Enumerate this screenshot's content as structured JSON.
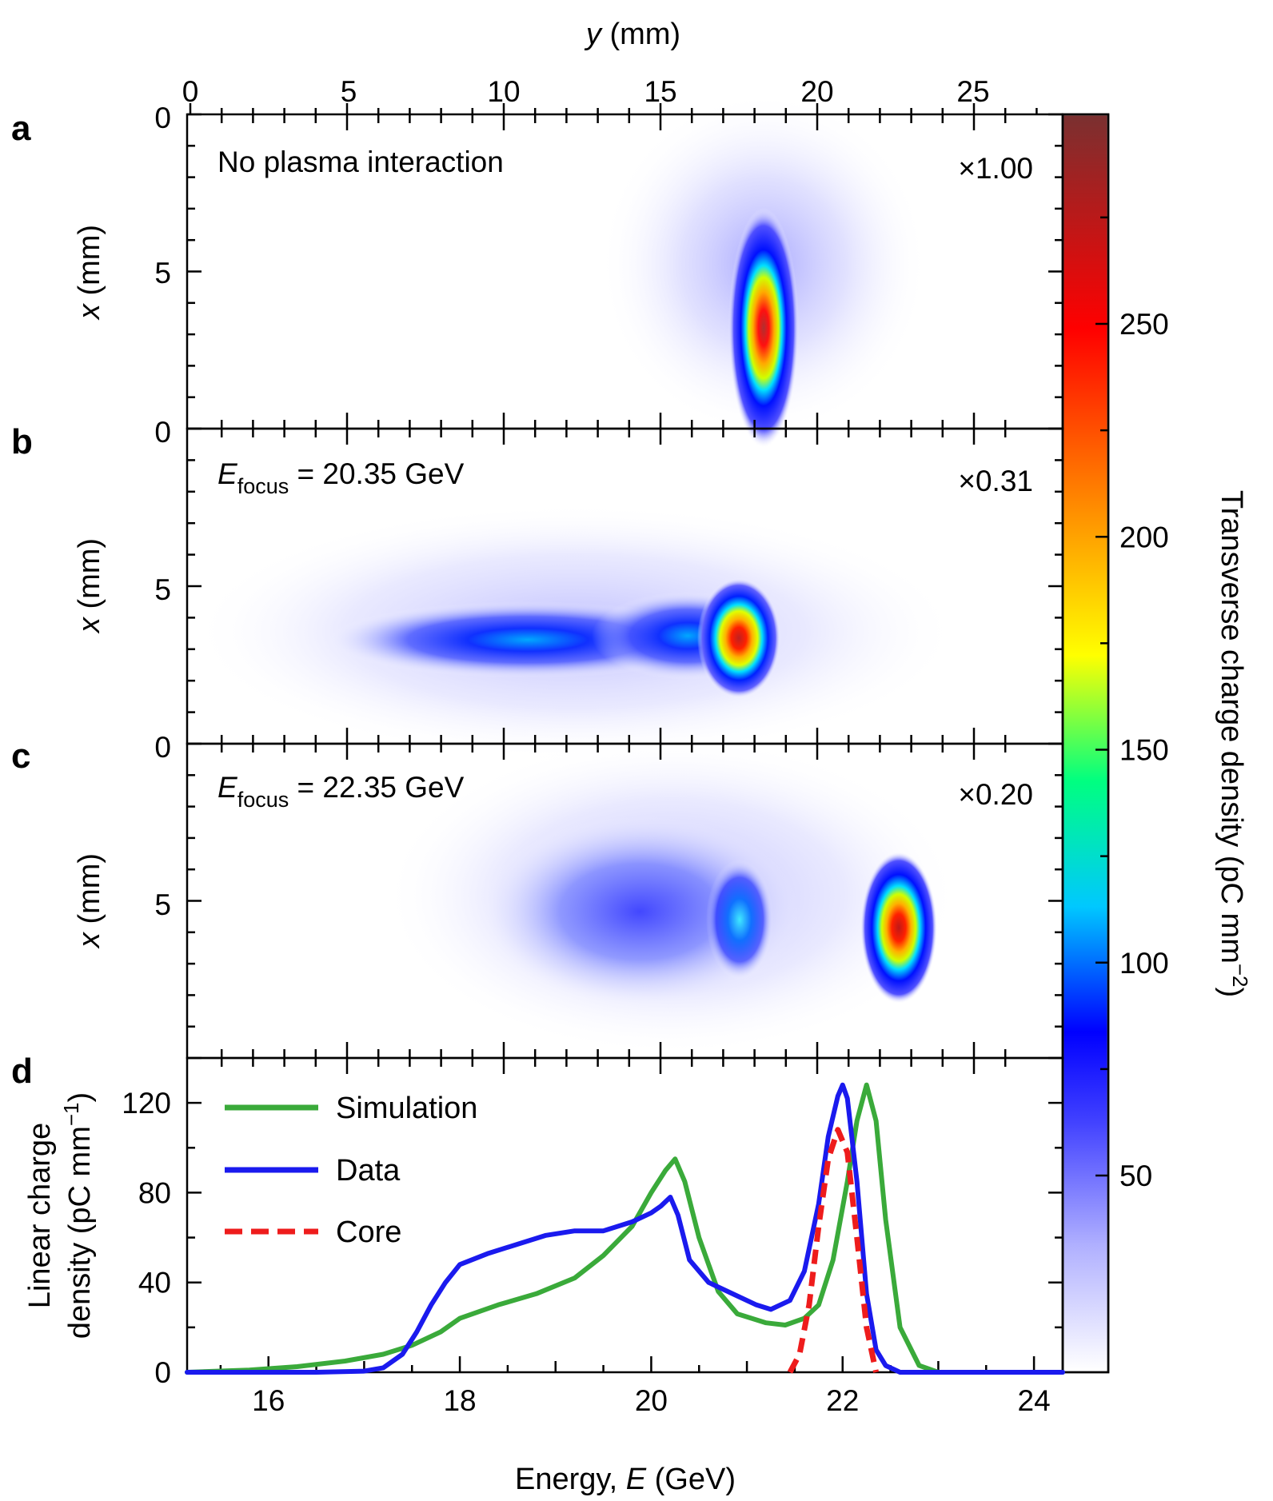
{
  "figure": {
    "top_axis_label": "y (mm)",
    "top_axis_var": "y",
    "top_axis_unit": " (mm)",
    "top_ticks": [
      "0",
      "5",
      "10",
      "15",
      "20",
      "25"
    ],
    "colorbar": {
      "label": "Transverse charge density (pC mm",
      "label_exp": "−2",
      "label_close": ")",
      "ticks": [
        "50",
        "100",
        "150",
        "200",
        "250"
      ],
      "colors": [
        "#ffffff",
        "#4040ff",
        "#0000ff",
        "#00d8ff",
        "#00ff80",
        "#ffff00",
        "#ff8000",
        "#ff0000",
        "#7a3030"
      ]
    },
    "image_panels": [
      {
        "letter": "a",
        "annotation": "No plasma interaction",
        "scale": "×1.00",
        "ylabel_var": "x",
        "ylabel_unit": " (mm)",
        "yticks": [
          "0",
          "5",
          "0"
        ]
      },
      {
        "letter": "b",
        "annotation_var": "E",
        "annotation_sub": "focus",
        "annotation_rest": " = 20.35 GeV",
        "scale": "×0.31",
        "ylabel_var": "x",
        "ylabel_unit": " (mm)",
        "yticks": [
          "5",
          "0"
        ]
      },
      {
        "letter": "c",
        "annotation_var": "E",
        "annotation_sub": "focus",
        "annotation_rest": " = 22.35 GeV",
        "scale": "×0.20",
        "ylabel_var": "x",
        "ylabel_unit": " (mm)",
        "yticks": [
          "5"
        ]
      }
    ],
    "line_panel": {
      "letter": "d",
      "ylabel_line1": "Linear charge",
      "ylabel_line2": "density (pC mm",
      "ylabel_exp": "−1",
      "ylabel_close": ")",
      "xlabel_text": "Energy, ",
      "xlabel_var": "E",
      "xlabel_unit": " (GeV)"
    }
  },
  "chart_data": {
    "type": "line",
    "title": "",
    "xlabel": "Energy, E (GeV)",
    "ylabel": "Linear charge density (pC mm−1)",
    "xlim": [
      15.15,
      24.3
    ],
    "ylim": [
      0,
      140
    ],
    "x_ticks": [
      16,
      18,
      20,
      22,
      24
    ],
    "y_ticks": [
      0,
      40,
      80,
      120
    ],
    "legend_position": "top-left",
    "series": [
      {
        "name": "Simulation",
        "color": "#3aaa3a",
        "style": "solid",
        "x": [
          15.15,
          15.8,
          16.3,
          16.8,
          17.2,
          17.5,
          17.8,
          18.0,
          18.4,
          18.8,
          19.2,
          19.5,
          19.8,
          20.0,
          20.15,
          20.25,
          20.35,
          20.5,
          20.7,
          20.9,
          21.2,
          21.4,
          21.6,
          21.75,
          21.9,
          22.05,
          22.15,
          22.25,
          22.35,
          22.45,
          22.6,
          22.8,
          23.0,
          24.3
        ],
        "values": [
          0,
          1,
          2.5,
          5,
          8,
          12,
          18,
          24,
          30,
          35,
          42,
          52,
          65,
          80,
          90,
          95,
          85,
          60,
          36,
          26,
          22,
          21,
          24,
          30,
          50,
          85,
          112,
          128,
          112,
          68,
          20,
          3,
          0,
          0
        ]
      },
      {
        "name": "Data",
        "color": "#1a1aee",
        "style": "solid",
        "x": [
          15.15,
          16.5,
          17.0,
          17.2,
          17.4,
          17.55,
          17.7,
          17.85,
          18.0,
          18.3,
          18.6,
          18.9,
          19.2,
          19.5,
          19.8,
          20.0,
          20.1,
          20.2,
          20.28,
          20.4,
          20.6,
          20.9,
          21.1,
          21.25,
          21.45,
          21.6,
          21.75,
          21.85,
          21.95,
          22.0,
          22.05,
          22.15,
          22.25,
          22.35,
          22.45,
          22.6,
          24.3
        ],
        "values": [
          0,
          0,
          0.5,
          2,
          8,
          18,
          30,
          40,
          48,
          53,
          57,
          61,
          63,
          63,
          67,
          71,
          74,
          78,
          70,
          50,
          40,
          34,
          30,
          28,
          32,
          45,
          75,
          105,
          123,
          128,
          122,
          85,
          35,
          10,
          3,
          0,
          0
        ]
      },
      {
        "name": "Core",
        "color": "#ee1c1c",
        "style": "dashed",
        "x": [
          21.45,
          21.55,
          21.65,
          21.75,
          21.85,
          21.95,
          22.05,
          22.15,
          22.25,
          22.35
        ],
        "values": [
          0,
          8,
          30,
          65,
          95,
          108,
          98,
          60,
          20,
          0
        ]
      }
    ],
    "blobs": [
      {
        "panel": "a",
        "y_mm": 18.2,
        "x_mm": 3.2,
        "peak": 280
      },
      {
        "panel": "b",
        "y_mm": 17.9,
        "x_mm": 3.3,
        "peak": 250
      },
      {
        "panel": "c",
        "y_mm": 22.4,
        "x_mm": 4.2,
        "peak": 230
      }
    ]
  }
}
